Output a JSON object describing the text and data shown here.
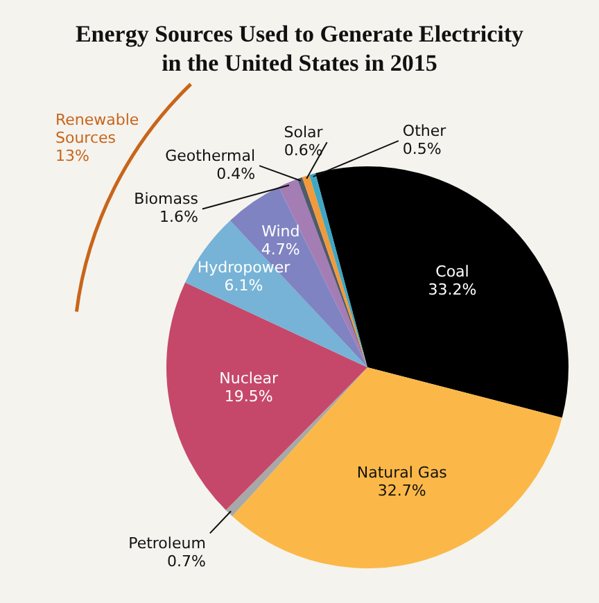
{
  "chart_data": {
    "type": "pie",
    "title": "Energy Sources Used to Generate Electricity in the United States in 2015",
    "categories": [
      "Coal",
      "Natural Gas",
      "Petroleum",
      "Nuclear",
      "Hydropower",
      "Wind",
      "Biomass",
      "Geothermal",
      "Solar",
      "Other"
    ],
    "values": [
      33.2,
      32.7,
      0.7,
      19.5,
      6.1,
      4.7,
      1.6,
      0.4,
      0.6,
      0.5
    ],
    "value_labels": [
      "33.2%",
      "32.7%",
      "0.7%",
      "19.5%",
      "6.1%",
      "4.7%",
      "1.6%",
      "0.4%",
      "0.6%",
      "0.5%"
    ],
    "colors": [
      "#000000",
      "#fbb848",
      "#a8a8a8",
      "#c5486a",
      "#76b3d6",
      "#7f83c2",
      "#a47db5",
      "#4f5a6b",
      "#f29a3a",
      "#3fa6c4"
    ],
    "annotations": [
      "Renewable Sources 13%"
    ],
    "legend": false
  }
}
